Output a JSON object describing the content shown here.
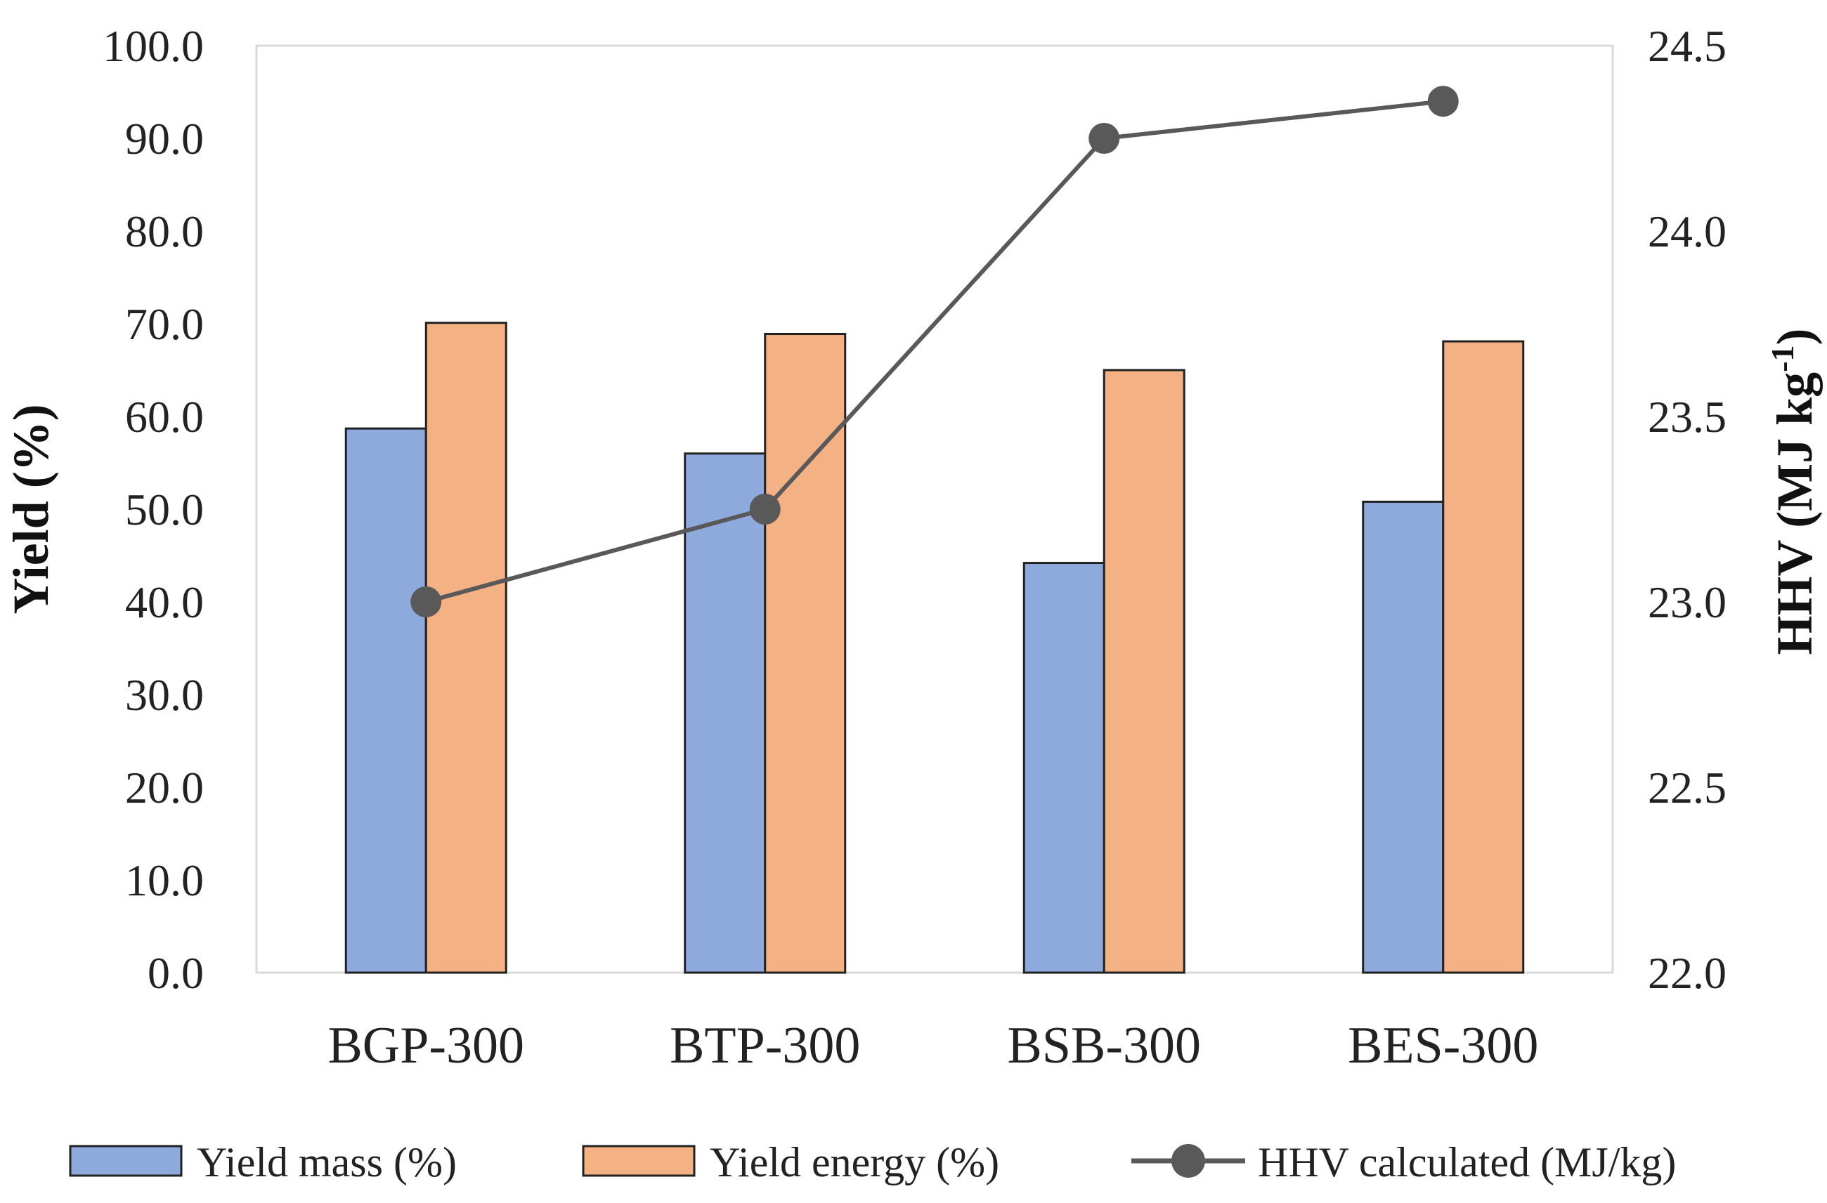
{
  "chart_data": {
    "type": "bar",
    "categories": [
      "BGP-300",
      "BTP-300",
      "BSB-300",
      "BES-300"
    ],
    "series": [
      {
        "name": "Yield mass (%)",
        "axis": "left",
        "color": "#8eaadc",
        "values": [
          58.7,
          56.0,
          44.2,
          50.8
        ]
      },
      {
        "name": "Yield energy (%)",
        "axis": "left",
        "color": "#f4b183",
        "values": [
          70.1,
          68.9,
          65.0,
          68.1
        ]
      },
      {
        "name": "HHV calculated (MJ/kg)",
        "axis": "right",
        "type": "line",
        "color": "#595959",
        "values": [
          23.0,
          23.25,
          24.25,
          24.35
        ]
      }
    ],
    "ylabel": "Yield  (%)",
    "y2label_main": "HHV (MJ kg",
    "y2label_sup": "-1",
    "y2label_end": ")",
    "ylim": [
      0,
      100
    ],
    "y2lim": [
      22.0,
      24.5
    ],
    "yticks": [
      "0.0",
      "10.0",
      "20.0",
      "30.0",
      "40.0",
      "50.0",
      "60.0",
      "70.0",
      "80.0",
      "90.0",
      "100.0"
    ],
    "y2ticks": [
      "22.0",
      "22.5",
      "23.0",
      "23.5",
      "24.0",
      "24.5"
    ],
    "legend_position": "bottom"
  }
}
